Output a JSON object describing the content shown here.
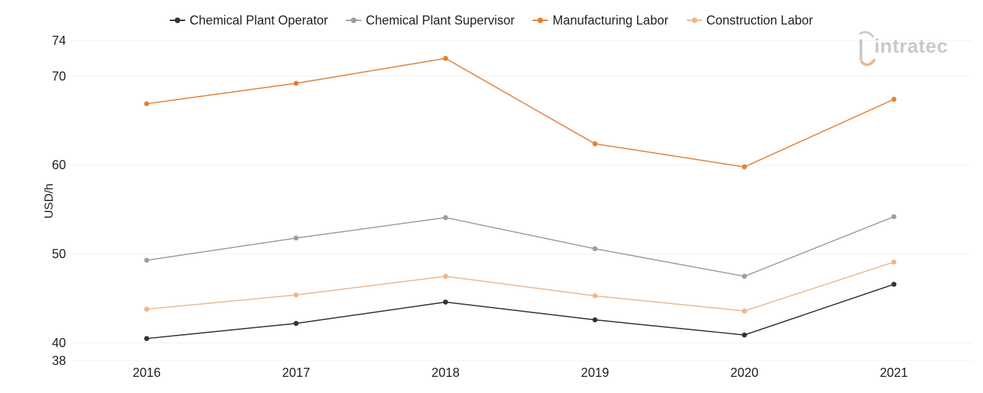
{
  "chart_data": {
    "type": "line",
    "title": "",
    "xlabel": "",
    "ylabel": "USD/h",
    "categories": [
      "2016",
      "2017",
      "2018",
      "2019",
      "2020",
      "2021"
    ],
    "yticks": [
      "38",
      "40",
      "50",
      "60",
      "70",
      "74"
    ],
    "ylim": [
      38,
      74
    ],
    "grid": true,
    "legend_position": "top-center",
    "series": [
      {
        "name": "Chemical Plant Operator",
        "color": "#333333",
        "values": [
          40.5,
          42.2,
          44.6,
          42.6,
          40.9,
          46.6
        ]
      },
      {
        "name": "Chemical Plant Supervisor",
        "color": "#9e9e9e",
        "values": [
          49.3,
          51.8,
          54.1,
          50.6,
          47.5,
          54.2
        ]
      },
      {
        "name": "Manufacturing Labor",
        "color": "#e0823a",
        "values": [
          66.9,
          69.2,
          72.0,
          62.4,
          59.8,
          67.4
        ]
      },
      {
        "name": "Construction Labor",
        "color": "#ebb88f",
        "values": [
          43.8,
          45.4,
          47.5,
          45.3,
          43.6,
          49.1
        ]
      }
    ]
  },
  "logo": {
    "text": "intratec"
  }
}
